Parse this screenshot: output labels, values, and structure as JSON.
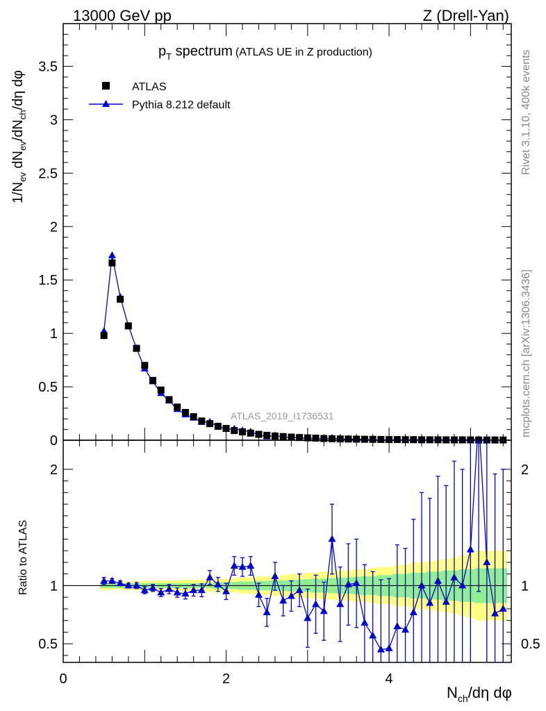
{
  "header": {
    "energy_label": "13000 GeV pp",
    "process_label": "Z (Drell-Yan)"
  },
  "side_labels": {
    "rivet": "Rivet 3.1.10,  400k events",
    "mcplots": "mcplots.cern.ch [arXiv:1306.3436]"
  },
  "plot_title": {
    "main": "p",
    "sub": "T",
    "rest": " spectrum",
    "note": "(ATLAS UE in Z production)"
  },
  "watermark": "ATLAS_2019_I1736531",
  "legend": {
    "data_label": "ATLAS",
    "mc_label": "Pythia 8.212 default"
  },
  "axes": {
    "ylabel_main": "1/N_ev dN_ev/dN_ch/dη dφ",
    "ylabel_ratio": "Ratio to ATLAS",
    "xlabel": "N_ch/dη dφ"
  },
  "colors": {
    "data": "#000000",
    "mc": "#0000cc",
    "band_inner": "#90ee90",
    "band_outer": "#ffff80"
  },
  "chart_data": [
    {
      "type": "scatter",
      "panel": "main",
      "title": "p_T spectrum (ATLAS UE in Z production)",
      "xlabel": "N_ch/dη dφ",
      "ylabel": "1/N_ev dN_ev/dN_ch/dη dφ",
      "xlim": [
        0,
        5.5
      ],
      "ylim": [
        0,
        3.9
      ],
      "yticks": [
        0,
        0.5,
        1,
        1.5,
        2,
        2.5,
        3,
        3.5
      ],
      "ytick_labels": [
        "0",
        "0.5",
        "1",
        "1.5",
        "2",
        "2.5",
        "3",
        "3.5"
      ],
      "series": [
        {
          "name": "ATLAS",
          "marker": "square",
          "x": [
            0.5,
            0.6,
            0.7,
            0.8,
            0.9,
            1.0,
            1.1,
            1.2,
            1.3,
            1.4,
            1.5,
            1.6,
            1.7,
            1.8,
            1.9,
            2.0,
            2.1,
            2.2,
            2.3,
            2.4,
            2.5,
            2.6,
            2.7,
            2.8,
            2.9,
            3.0,
            3.1,
            3.2,
            3.3,
            3.4,
            3.5,
            3.6,
            3.7,
            3.8,
            3.9,
            4.0,
            4.1,
            4.2,
            4.3,
            4.4,
            4.5,
            4.6,
            4.7,
            4.8,
            4.9,
            5.0,
            5.1,
            5.2,
            5.3,
            5.4
          ],
          "y": [
            0.98,
            1.66,
            1.32,
            1.07,
            0.86,
            0.7,
            0.56,
            0.47,
            0.38,
            0.31,
            0.26,
            0.22,
            0.18,
            0.155,
            0.13,
            0.11,
            0.09,
            0.078,
            0.066,
            0.055,
            0.046,
            0.039,
            0.034,
            0.029,
            0.025,
            0.022,
            0.019,
            0.016,
            0.014,
            0.012,
            0.011,
            0.01,
            0.009,
            0.008,
            0.007,
            0.006,
            0.006,
            0.005,
            0.005,
            0.004,
            0.004,
            0.004,
            0.003,
            0.003,
            0.003,
            0.003,
            0.002,
            0.002,
            0.002,
            0.002
          ]
        },
        {
          "name": "Pythia 8.212 default",
          "marker": "triangle",
          "x": [
            0.5,
            0.6,
            0.7,
            0.8,
            0.9,
            1.0,
            1.1,
            1.2,
            1.3,
            1.4,
            1.5,
            1.6,
            1.7,
            1.8,
            1.9,
            2.0,
            2.1,
            2.2,
            2.3,
            2.4,
            2.5,
            2.6,
            2.7,
            2.8,
            2.9,
            3.0,
            3.1,
            3.2,
            3.3,
            3.4,
            3.5,
            3.6,
            3.7,
            3.8,
            3.9,
            4.0,
            4.1,
            4.2,
            4.3,
            4.4,
            4.5,
            4.6,
            4.7,
            4.8,
            4.9,
            5.0,
            5.1,
            5.2,
            5.3,
            5.4
          ],
          "y": [
            1.02,
            1.73,
            1.34,
            1.07,
            0.86,
            0.67,
            0.55,
            0.44,
            0.37,
            0.29,
            0.24,
            0.21,
            0.17,
            0.17,
            0.13,
            0.105,
            0.106,
            0.091,
            0.078,
            0.05,
            0.035,
            0.043,
            0.03,
            0.026,
            0.024,
            0.016,
            0.016,
            0.012,
            0.02,
            0.01,
            0.011,
            0.01,
            0.006,
            0.005,
            0.003,
            0.003,
            0.004,
            0.003,
            0.004,
            0.004,
            0.003,
            0.004,
            0.003,
            0.003,
            0.003,
            0.004,
            0.006,
            0.002,
            0.0015,
            0.0016
          ]
        }
      ]
    },
    {
      "type": "line",
      "panel": "ratio",
      "ylabel": "Ratio to ATLAS",
      "xlabel": "N_ch/dη dφ",
      "xlim": [
        0,
        5.5
      ],
      "ylim": [
        0.34,
        2.25
      ],
      "xticks": [
        0,
        2,
        4
      ],
      "xtick_labels": [
        "0",
        "2",
        "4"
      ],
      "yticks": [
        0.5,
        1,
        2
      ],
      "ytick_labels": [
        "0.5",
        "1",
        "2"
      ],
      "reference_line": 1,
      "band": {
        "x_edges": [
          0.45,
          0.55,
          0.65,
          0.75,
          0.85,
          0.95,
          1.05,
          1.15,
          1.25,
          1.35,
          1.45,
          1.55,
          1.65,
          1.75,
          1.85,
          1.95,
          2.05,
          2.15,
          2.25,
          2.35,
          2.45,
          2.55,
          2.65,
          2.75,
          2.85,
          2.95,
          3.05,
          3.15,
          3.25,
          3.35,
          3.45,
          3.55,
          3.65,
          3.75,
          3.85,
          3.95,
          4.05,
          4.15,
          4.25,
          4.35,
          4.45,
          4.55,
          4.65,
          4.75,
          4.85,
          4.95,
          5.05,
          5.15,
          5.25,
          5.35,
          5.45
        ],
        "inner": [
          0.02,
          0.02,
          0.02,
          0.02,
          0.02,
          0.02,
          0.02,
          0.02,
          0.02,
          0.02,
          0.02,
          0.02,
          0.02,
          0.02,
          0.03,
          0.03,
          0.03,
          0.035,
          0.035,
          0.04,
          0.04,
          0.045,
          0.045,
          0.05,
          0.05,
          0.055,
          0.06,
          0.06,
          0.065,
          0.07,
          0.07,
          0.075,
          0.08,
          0.08,
          0.09,
          0.09,
          0.1,
          0.1,
          0.11,
          0.11,
          0.12,
          0.12,
          0.13,
          0.13,
          0.14,
          0.14,
          0.15,
          0.15,
          0.15,
          0.15
        ],
        "outer": [
          0.04,
          0.035,
          0.035,
          0.035,
          0.04,
          0.04,
          0.04,
          0.045,
          0.045,
          0.045,
          0.05,
          0.05,
          0.05,
          0.05,
          0.06,
          0.06,
          0.06,
          0.07,
          0.07,
          0.08,
          0.08,
          0.09,
          0.09,
          0.1,
          0.1,
          0.11,
          0.11,
          0.12,
          0.12,
          0.13,
          0.13,
          0.14,
          0.14,
          0.15,
          0.16,
          0.16,
          0.18,
          0.18,
          0.2,
          0.2,
          0.21,
          0.22,
          0.23,
          0.24,
          0.26,
          0.28,
          0.3,
          0.3,
          0.3,
          0.3
        ]
      },
      "series": [
        {
          "name": "Pythia 8.212 default / ATLAS",
          "x": [
            0.5,
            0.6,
            0.7,
            0.8,
            0.9,
            1.0,
            1.1,
            1.2,
            1.3,
            1.4,
            1.5,
            1.6,
            1.7,
            1.8,
            1.9,
            2.0,
            2.1,
            2.2,
            2.3,
            2.4,
            2.5,
            2.6,
            2.7,
            2.8,
            2.9,
            3.0,
            3.1,
            3.2,
            3.3,
            3.4,
            3.5,
            3.6,
            3.7,
            3.8,
            3.9,
            4.0,
            4.1,
            4.2,
            4.3,
            4.4,
            4.5,
            4.6,
            4.7,
            4.8,
            4.9,
            5.0,
            5.1,
            5.2,
            5.3,
            5.4
          ],
          "y": [
            1.04,
            1.04,
            1.02,
            1.0,
            1.0,
            0.96,
            0.98,
            0.94,
            0.97,
            0.94,
            0.93,
            0.96,
            0.96,
            1.07,
            1.01,
            0.95,
            1.17,
            1.16,
            1.17,
            0.92,
            0.77,
            1.08,
            0.87,
            0.91,
            0.96,
            0.72,
            0.84,
            0.78,
            1.4,
            0.84,
            1.01,
            1.02,
            0.68,
            0.57,
            0.45,
            0.46,
            0.65,
            0.62,
            0.77,
            1.0,
            0.85,
            1.04,
            0.86,
            1.07,
            1.0,
            1.31,
            2.45,
            1.2,
            0.76,
            0.8
          ],
          "err": [
            0.03,
            0.02,
            0.02,
            0.02,
            0.025,
            0.03,
            0.03,
            0.035,
            0.04,
            0.04,
            0.045,
            0.05,
            0.055,
            0.06,
            0.06,
            0.07,
            0.08,
            0.08,
            0.08,
            0.1,
            0.12,
            0.12,
            0.13,
            0.13,
            0.14,
            0.25,
            0.25,
            0.25,
            0.3,
            0.32,
            0.35,
            0.38,
            0.5,
            0.55,
            0.6,
            0.6,
            0.7,
            0.7,
            0.8,
            0.8,
            0.9,
            0.9,
            1.0,
            1.0,
            1.0,
            1.2,
            1.5,
            1.2,
            1.2,
            1.2
          ]
        }
      ]
    }
  ]
}
